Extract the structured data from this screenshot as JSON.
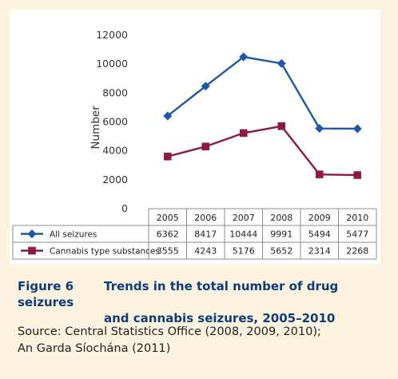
{
  "chart_data": {
    "type": "line",
    "categories": [
      "2005",
      "2006",
      "2007",
      "2008",
      "2009",
      "2010"
    ],
    "series": [
      {
        "name": "All seizures",
        "values": [
          6362,
          8417,
          10444,
          9991,
          5494,
          5477
        ],
        "color": "#1f57a8",
        "marker": "diamond"
      },
      {
        "name": "Cannabis type substances",
        "values": [
          3555,
          4243,
          5176,
          5652,
          2314,
          2268
        ],
        "color": "#8c1a45",
        "marker": "square"
      }
    ],
    "ylabel": "Number",
    "ylim": [
      0,
      12000
    ],
    "yticks": [
      0,
      2000,
      4000,
      6000,
      8000,
      10000,
      12000
    ],
    "grid": false,
    "data_table": true
  },
  "caption": {
    "figure_number": "Figure 6",
    "title_line1": "Trends in the total number of drug seizures",
    "title_line2": "and cannabis seizures, 2005–2010"
  },
  "source": {
    "line1": "Source: Central Statistics Office (2008, 2009, 2010);",
    "line2": "An Garda Síochána (2011)"
  }
}
